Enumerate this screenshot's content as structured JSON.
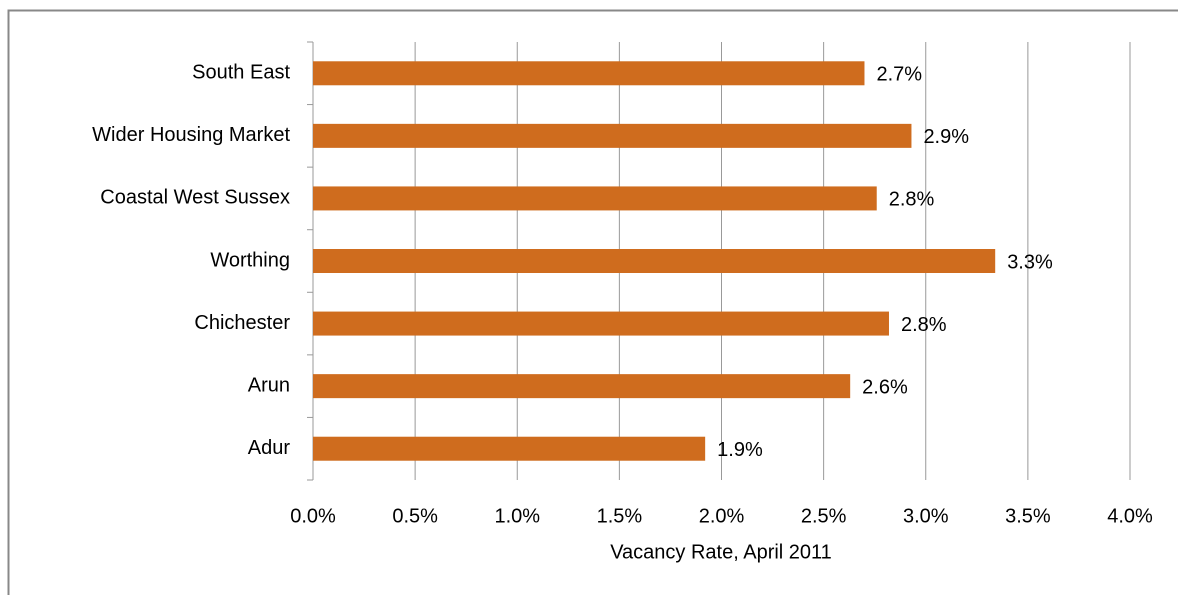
{
  "chart_data": {
    "type": "bar",
    "orientation": "horizontal",
    "xlabel": "Vacancy Rate, April 2011",
    "categories": [
      "South East",
      "Wider Housing Market",
      "Coastal West Sussex",
      "Worthing",
      "Chichester",
      "Arun",
      "Adur"
    ],
    "values": [
      2.7,
      2.93,
      2.76,
      3.34,
      2.82,
      2.63,
      1.92
    ],
    "value_labels": [
      "2.7%",
      "2.9%",
      "2.8%",
      "3.3%",
      "2.8%",
      "2.6%",
      "1.9%"
    ],
    "color": "#cf6c1e",
    "xlim": [
      0,
      4
    ],
    "xticks": [
      {
        "value": 0,
        "label": "0.0%"
      },
      {
        "value": 0.5,
        "label": "0.5%"
      },
      {
        "value": 1,
        "label": "1.0%"
      },
      {
        "value": 1.5,
        "label": "1.5%"
      },
      {
        "value": 2,
        "label": "2.0%"
      },
      {
        "value": 2.5,
        "label": "2.5%"
      },
      {
        "value": 3,
        "label": "3.0%"
      },
      {
        "value": 3.5,
        "label": "3.5%"
      },
      {
        "value": 4,
        "label": "4.0%"
      }
    ],
    "grid": true
  }
}
